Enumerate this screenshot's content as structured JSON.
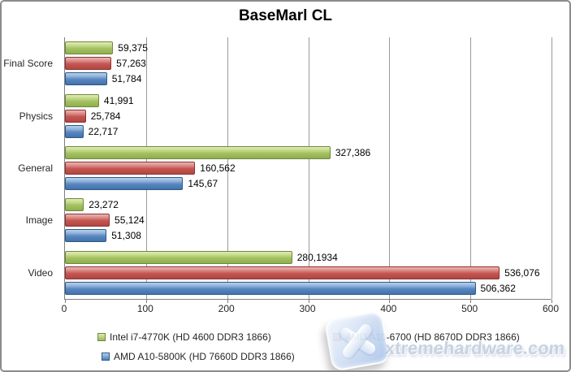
{
  "chart_data": {
    "type": "bar",
    "orientation": "horizontal",
    "title": "BaseMarl CL",
    "categories": [
      "Final Score",
      "Physics",
      "General",
      "Image",
      "Video"
    ],
    "series": [
      {
        "name": "Intel i7-4770K (HD 4600 DDR3 1866)",
        "color": "#9BBB59",
        "values": [
          59.375,
          41.991,
          327.386,
          23.272,
          280.1934
        ],
        "value_labels": [
          "59,375",
          "41,991",
          "327,386",
          "23,272",
          "280,1934"
        ]
      },
      {
        "name": "AMD A10-6700 (HD 8670D DDR3 1866)",
        "color": "#C0504D",
        "values": [
          57.263,
          25.784,
          160.562,
          55.124,
          536.076
        ],
        "value_labels": [
          "57,263",
          "25,784",
          "160,562",
          "55,124",
          "536,076"
        ]
      },
      {
        "name": "AMD A10-5800K (HD 7660D DDR3 1866)",
        "color": "#4F81BD",
        "values": [
          51.784,
          22.717,
          145.67,
          51.308,
          506.362
        ],
        "value_labels": [
          "51,784",
          "22,717",
          "145,67",
          "51,308",
          "506,362"
        ]
      }
    ],
    "xlim": [
      0,
      600
    ],
    "x_ticks": [
      "0",
      "100",
      "200",
      "300",
      "400",
      "500",
      "600"
    ],
    "grid": true,
    "legend_position": "bottom"
  },
  "watermark": {
    "text": "xtremehardware.com",
    "icon": "x-logo"
  },
  "colors": {
    "gridline": "#9A9A9A",
    "axis": "#7F7F7F",
    "chart_border": "#8C8C8C",
    "label_text": "#262626"
  }
}
